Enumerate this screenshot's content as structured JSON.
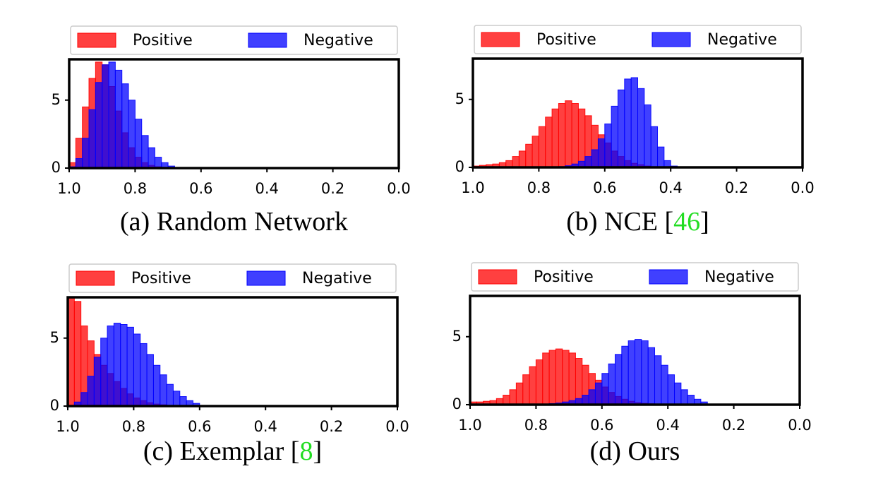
{
  "chart_data": [
    {
      "type": "histogram",
      "caption": [
        "(a) Random Network"
      ],
      "legend": "top",
      "xlim": [
        1.0,
        0.0
      ],
      "xticks": [
        {
          "value": 1,
          "label": "1.0"
        },
        0.8,
        0.6,
        0.4,
        0.2,
        {
          "value": 0,
          "label": "0.0"
        }
      ],
      "ylim": [
        0,
        8
      ],
      "yticks": [
        0,
        5
      ],
      "bins": [
        0.66,
        0.68,
        0.7,
        0.72,
        0.74,
        0.76,
        0.78,
        0.8,
        0.82,
        0.84,
        0.86,
        0.88,
        0.9,
        0.92,
        0.94,
        0.96,
        0.98,
        1.0
      ],
      "series": [
        {
          "name": "Positive",
          "color": "#ff0000",
          "values": [
            0,
            0,
            0.05,
            0.1,
            0.2,
            0.4,
            0.8,
            1.5,
            2.6,
            4.2,
            6.0,
            7.6,
            7.8,
            6.6,
            4.5,
            2.2,
            0.4
          ]
        },
        {
          "name": "Negative",
          "color": "#0000ff",
          "values": [
            0.05,
            0.15,
            0.4,
            0.8,
            1.5,
            2.4,
            3.6,
            5.0,
            6.2,
            7.2,
            7.8,
            7.6,
            6.3,
            4.3,
            2.2,
            0.7,
            0.1
          ]
        }
      ]
    },
    {
      "type": "histogram",
      "caption": [
        "(b) NCE [",
        "46",
        "]"
      ],
      "legend": "top",
      "xlim": [
        1.0,
        0.0
      ],
      "xticks": [
        {
          "value": 1,
          "label": "1.0"
        },
        0.8,
        0.6,
        0.4,
        0.2,
        {
          "value": 0,
          "label": "0.0"
        }
      ],
      "ylim": [
        0,
        8
      ],
      "yticks": [
        0,
        5
      ],
      "bins": [
        0.38,
        0.4,
        0.42,
        0.44,
        0.46,
        0.48,
        0.5,
        0.52,
        0.54,
        0.56,
        0.58,
        0.6,
        0.62,
        0.64,
        0.66,
        0.68,
        0.7,
        0.72,
        0.74,
        0.76,
        0.78,
        0.8,
        0.82,
        0.84,
        0.86,
        0.88,
        0.9,
        0.92,
        0.94,
        0.96,
        0.98,
        1.0
      ],
      "series": [
        {
          "name": "Positive",
          "color": "#ff0000",
          "values": [
            0,
            0,
            0.02,
            0.05,
            0.1,
            0.2,
            0.3,
            0.5,
            0.8,
            1.2,
            1.8,
            2.4,
            3.1,
            3.8,
            4.3,
            4.7,
            4.9,
            4.7,
            4.3,
            3.7,
            3.0,
            2.3,
            1.7,
            1.2,
            0.8,
            0.5,
            0.35,
            0.25,
            0.2,
            0.15,
            0.1
          ]
        },
        {
          "name": "Negative",
          "color": "#0000ff",
          "values": [
            0.1,
            0.5,
            1.5,
            3.0,
            4.6,
            5.8,
            6.6,
            6.5,
            5.7,
            4.5,
            3.2,
            2.1,
            1.3,
            0.8,
            0.45,
            0.25,
            0.12,
            0.06,
            0.03,
            0.01,
            0,
            0,
            0,
            0,
            0,
            0,
            0,
            0,
            0,
            0,
            0
          ]
        }
      ]
    },
    {
      "type": "histogram",
      "caption": [
        "(c) Exemplar [",
        "8",
        "]"
      ],
      "legend": "top",
      "xlim": [
        1.0,
        0.0
      ],
      "xticks": [
        {
          "value": 1,
          "label": "1.0"
        },
        0.8,
        0.6,
        0.4,
        0.2,
        {
          "value": 0,
          "label": "0.0"
        }
      ],
      "ylim": [
        0,
        8
      ],
      "yticks": [
        0,
        5
      ],
      "bins": [
        0.58,
        0.6,
        0.62,
        0.64,
        0.66,
        0.68,
        0.7,
        0.72,
        0.74,
        0.76,
        0.78,
        0.8,
        0.82,
        0.84,
        0.86,
        0.88,
        0.9,
        0.92,
        0.94,
        0.96,
        0.98,
        1.0
      ],
      "series": [
        {
          "name": "Positive",
          "color": "#ff0000",
          "values": [
            0,
            0,
            0,
            0,
            0.02,
            0.05,
            0.1,
            0.15,
            0.25,
            0.4,
            0.6,
            0.9,
            1.3,
            1.8,
            2.4,
            3.0,
            3.8,
            4.8,
            5.9,
            7.7,
            8.0
          ]
        },
        {
          "name": "Negative",
          "color": "#0000ff",
          "values": [
            0.05,
            0.2,
            0.4,
            0.7,
            1.1,
            1.6,
            2.3,
            3.0,
            3.8,
            4.6,
            5.3,
            5.8,
            6.0,
            6.1,
            5.9,
            5.0,
            3.6,
            2.2,
            1.0,
            0.3,
            0
          ]
        }
      ]
    },
    {
      "type": "histogram",
      "caption": [
        "(d) Ours"
      ],
      "legend": "top",
      "xlim": [
        1.0,
        0.0
      ],
      "xticks": [
        {
          "value": 1,
          "label": "1.0"
        },
        0.8,
        0.6,
        0.4,
        0.2,
        {
          "value": 0,
          "label": "0.0"
        }
      ],
      "ylim": [
        0,
        8
      ],
      "yticks": [
        0,
        5
      ],
      "bins": [
        0.26,
        0.28,
        0.3,
        0.32,
        0.34,
        0.36,
        0.38,
        0.4,
        0.42,
        0.44,
        0.46,
        0.48,
        0.5,
        0.52,
        0.54,
        0.56,
        0.58,
        0.6,
        0.62,
        0.64,
        0.66,
        0.68,
        0.7,
        0.72,
        0.74,
        0.76,
        0.78,
        0.8,
        0.82,
        0.84,
        0.86,
        0.88,
        0.9,
        0.92,
        0.94,
        0.96,
        0.98,
        1.0
      ],
      "series": [
        {
          "name": "Positive",
          "color": "#ff0000",
          "values": [
            0,
            0,
            0,
            0,
            0,
            0,
            0,
            0.02,
            0.04,
            0.07,
            0.1,
            0.15,
            0.25,
            0.4,
            0.6,
            0.9,
            1.3,
            1.8,
            2.3,
            2.9,
            3.4,
            3.8,
            4.0,
            4.1,
            4.0,
            3.8,
            3.3,
            2.8,
            2.2,
            1.6,
            1.1,
            0.7,
            0.45,
            0.3,
            0.25,
            0.2,
            0.2
          ]
        },
        {
          "name": "Negative",
          "color": "#0000ff",
          "values": [
            0.05,
            0.2,
            0.4,
            0.7,
            1.1,
            1.6,
            2.2,
            2.9,
            3.6,
            4.2,
            4.7,
            4.8,
            4.7,
            4.3,
            3.7,
            3.0,
            2.3,
            1.6,
            1.1,
            0.7,
            0.45,
            0.3,
            0.2,
            0.12,
            0.08,
            0.05,
            0.03,
            0.02,
            0,
            0,
            0,
            0,
            0,
            0,
            0,
            0,
            0
          ]
        }
      ]
    }
  ]
}
